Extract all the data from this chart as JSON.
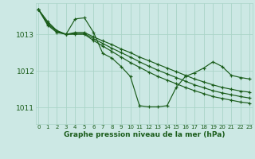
{
  "title": "Graphe pression niveau de la mer (hPa)",
  "bg_color": "#cce8e4",
  "grid_color": "#aad4c8",
  "line_color": "#1a5c1a",
  "xlim": [
    -0.3,
    23.3
  ],
  "ylim": [
    1010.55,
    1013.85
  ],
  "yticks": [
    1011,
    1012,
    1013
  ],
  "xtick_labels": [
    "0",
    "1",
    "2",
    "3",
    "4",
    "5",
    "6",
    "7",
    "8",
    "9",
    "10",
    "11",
    "12",
    "13",
    "14",
    "15",
    "16",
    "17",
    "18",
    "19",
    "20",
    "21",
    "22",
    "23"
  ],
  "series": [
    {
      "y": [
        1013.68,
        1013.35,
        1013.1,
        1013.0,
        1013.42,
        1013.45,
        1013.05,
        1012.48,
        1012.35,
        1012.12,
        1011.85,
        1011.05,
        1011.02,
        1011.02,
        1011.05,
        1011.55,
        1011.85,
        1011.95,
        1012.08,
        1012.25,
        1012.12,
        1011.88,
        1011.82,
        1011.78
      ]
    },
    {
      "y": [
        1013.68,
        1013.3,
        1013.1,
        1013.0,
        1013.05,
        1013.05,
        1012.93,
        1012.82,
        1012.72,
        1012.6,
        1012.5,
        1012.38,
        1012.28,
        1012.18,
        1012.08,
        1011.98,
        1011.88,
        1011.78,
        1011.7,
        1011.62,
        1011.55,
        1011.5,
        1011.45,
        1011.42
      ]
    },
    {
      "y": [
        1013.68,
        1013.28,
        1013.08,
        1013.0,
        1013.02,
        1013.02,
        1012.88,
        1012.75,
        1012.62,
        1012.5,
        1012.38,
        1012.25,
        1012.13,
        1012.02,
        1011.92,
        1011.82,
        1011.72,
        1011.62,
        1011.54,
        1011.46,
        1011.4,
        1011.35,
        1011.3,
        1011.26
      ]
    },
    {
      "y": [
        1013.68,
        1013.25,
        1013.05,
        1013.0,
        1013.0,
        1013.0,
        1012.83,
        1012.68,
        1012.53,
        1012.38,
        1012.23,
        1012.1,
        1011.97,
        1011.85,
        1011.75,
        1011.65,
        1011.55,
        1011.46,
        1011.38,
        1011.3,
        1011.25,
        1011.2,
        1011.15,
        1011.12
      ]
    }
  ]
}
